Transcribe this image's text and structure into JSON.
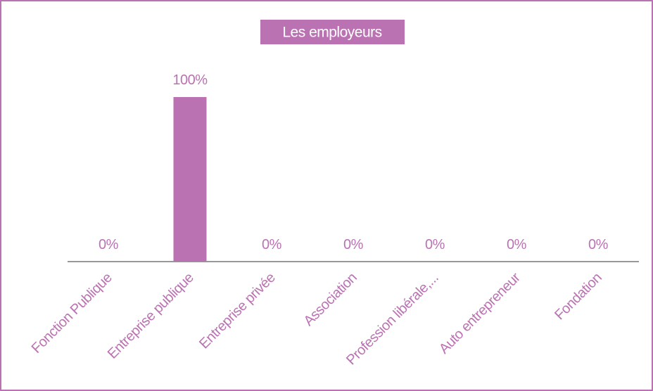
{
  "chart_data": {
    "type": "bar",
    "title": "Les employeurs",
    "categories": [
      "Fonction Publique",
      "Entreprise publique",
      "Entreprise privée",
      "Association",
      "Profession libérale,...",
      "Auto entrepreneur",
      "Fondation"
    ],
    "values": [
      0,
      100,
      0,
      0,
      0,
      0,
      0
    ],
    "value_labels": [
      "0%",
      "100%",
      "0%",
      "0%",
      "0%",
      "0%",
      "0%"
    ],
    "color": "#bb72b2"
  }
}
